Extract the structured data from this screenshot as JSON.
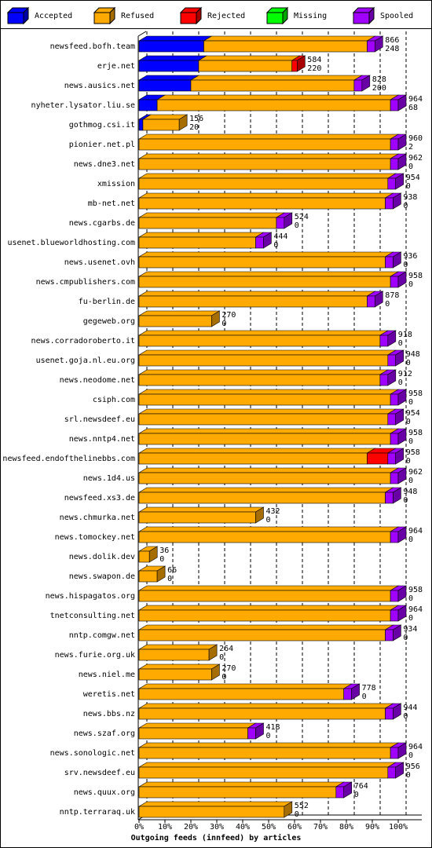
{
  "chart_data": {
    "type": "stacked-bar-3d",
    "xlabel": "Outgoing feeds (innfeed) by articles",
    "categories": [
      "newsfeed.bofh.team",
      "erje.net",
      "news.ausics.net",
      "nyheter.lysator.liu.se",
      "gothmog.csi.it",
      "pionier.net.pl",
      "news.dne3.net",
      "xmission",
      "mb-net.net",
      "news.cgarbs.de",
      "usenet.blueworldhosting.com",
      "news.usenet.ovh",
      "news.cmpublishers.com",
      "fu-berlin.de",
      "gegeweb.org",
      "news.corradoroberto.it",
      "usenet.goja.nl.eu.org",
      "news.neodome.net",
      "csiph.com",
      "srl.newsdeef.eu",
      "news.nntp4.net",
      "newsfeed.endofthelinebbs.com",
      "news.1d4.us",
      "newsfeed.xs3.de",
      "news.chmurka.net",
      "news.tomockey.net",
      "news.dolik.dev",
      "news.swapon.de",
      "news.hispagatos.org",
      "tnetconsulting.net",
      "nntp.comgw.net",
      "news.furie.org.uk",
      "news.niel.me",
      "weretis.net",
      "news.bbs.nz",
      "news.szaf.org",
      "news.sonologic.net",
      "srv.newsdeef.eu",
      "news.quux.org",
      "nntp.terraraq.uk"
    ],
    "series": [
      {
        "name": "Accepted",
        "color": "#0000ff",
        "values": [
          25,
          23,
          20,
          7,
          1.5,
          0,
          0,
          0,
          0,
          0,
          0,
          0,
          0,
          0,
          0,
          0,
          0,
          0,
          0,
          0,
          0,
          0,
          0,
          0,
          0,
          0,
          0,
          0,
          0,
          0,
          0,
          0,
          0,
          0,
          0,
          0,
          0,
          0,
          0,
          0
        ]
      },
      {
        "name": "Refused",
        "color": "#ffaa00",
        "values": [
          63,
          36,
          63,
          90,
          14,
          97,
          97,
          96,
          95,
          53,
          45,
          95,
          97,
          88,
          28,
          93,
          96,
          93,
          97,
          96,
          97,
          88,
          97,
          95,
          45,
          97,
          4,
          7,
          97,
          97,
          95,
          27,
          28,
          79,
          95,
          42,
          97,
          96,
          76,
          56
        ]
      },
      {
        "name": "Rejected",
        "color": "#ff0000",
        "values": [
          0,
          2,
          0,
          0,
          0,
          0,
          0,
          0,
          0,
          0,
          0,
          0,
          0,
          0,
          0,
          0,
          0,
          0,
          0,
          0,
          0,
          8,
          0,
          0,
          0,
          0,
          0,
          0,
          0,
          0,
          0,
          0,
          0,
          0,
          0,
          0,
          0,
          0,
          0,
          0
        ]
      },
      {
        "name": "Missing",
        "color": "#00ff00",
        "values": [
          0,
          0,
          0,
          0,
          0,
          0,
          0,
          0,
          0,
          0,
          0,
          0,
          0,
          0,
          0,
          0,
          0,
          0,
          0,
          0,
          0,
          0,
          0,
          0,
          0,
          0,
          0,
          0,
          0,
          0,
          0,
          0,
          0,
          0,
          0,
          0,
          0,
          0,
          0,
          0
        ]
      },
      {
        "name": "Spooled",
        "color": "#a000ff",
        "values": [
          3,
          0,
          3,
          3,
          0,
          3,
          3,
          3,
          3,
          3,
          3,
          3,
          3,
          3,
          0,
          3,
          3,
          3,
          3,
          3,
          3,
          3,
          3,
          3,
          0,
          3,
          0,
          0,
          3,
          3,
          3,
          0,
          0,
          3,
          3,
          3,
          3,
          3,
          3,
          0
        ]
      }
    ],
    "annotations": [
      [
        866,
        248
      ],
      [
        584,
        220
      ],
      [
        828,
        200
      ],
      [
        964,
        68
      ],
      [
        156,
        20
      ],
      [
        960,
        2
      ],
      [
        962,
        0
      ],
      [
        954,
        0
      ],
      [
        938,
        0
      ],
      [
        524,
        0
      ],
      [
        444,
        0
      ],
      [
        936,
        0
      ],
      [
        958,
        0
      ],
      [
        878,
        0
      ],
      [
        270,
        0
      ],
      [
        918,
        0
      ],
      [
        948,
        0
      ],
      [
        912,
        0
      ],
      [
        958,
        0
      ],
      [
        954,
        0
      ],
      [
        958,
        0
      ],
      [
        958,
        0
      ],
      [
        962,
        0
      ],
      [
        948,
        0
      ],
      [
        432,
        0
      ],
      [
        964,
        0
      ],
      [
        36,
        0
      ],
      [
        66,
        0
      ],
      [
        958,
        0
      ],
      [
        964,
        0
      ],
      [
        934,
        0
      ],
      [
        264,
        0
      ],
      [
        270,
        0
      ],
      [
        778,
        0
      ],
      [
        944,
        0
      ],
      [
        418,
        0
      ],
      [
        964,
        0
      ],
      [
        956,
        0
      ],
      [
        764,
        0
      ],
      [
        552,
        0
      ]
    ],
    "xlim": [
      0,
      100
    ],
    "xticks": [
      {
        "value": 0,
        "label": "0%"
      },
      {
        "value": 10,
        "label": "10%"
      },
      {
        "value": 20,
        "label": "20%"
      },
      {
        "value": 30,
        "label": "30%"
      },
      {
        "value": 40,
        "label": "40%"
      },
      {
        "value": 50,
        "label": "50%"
      },
      {
        "value": 60,
        "label": "60%"
      },
      {
        "value": 70,
        "label": "70%"
      },
      {
        "value": 80,
        "label": "80%"
      },
      {
        "value": 90,
        "label": "90%"
      },
      {
        "value": 100,
        "label": "100%"
      }
    ],
    "grid": true
  }
}
